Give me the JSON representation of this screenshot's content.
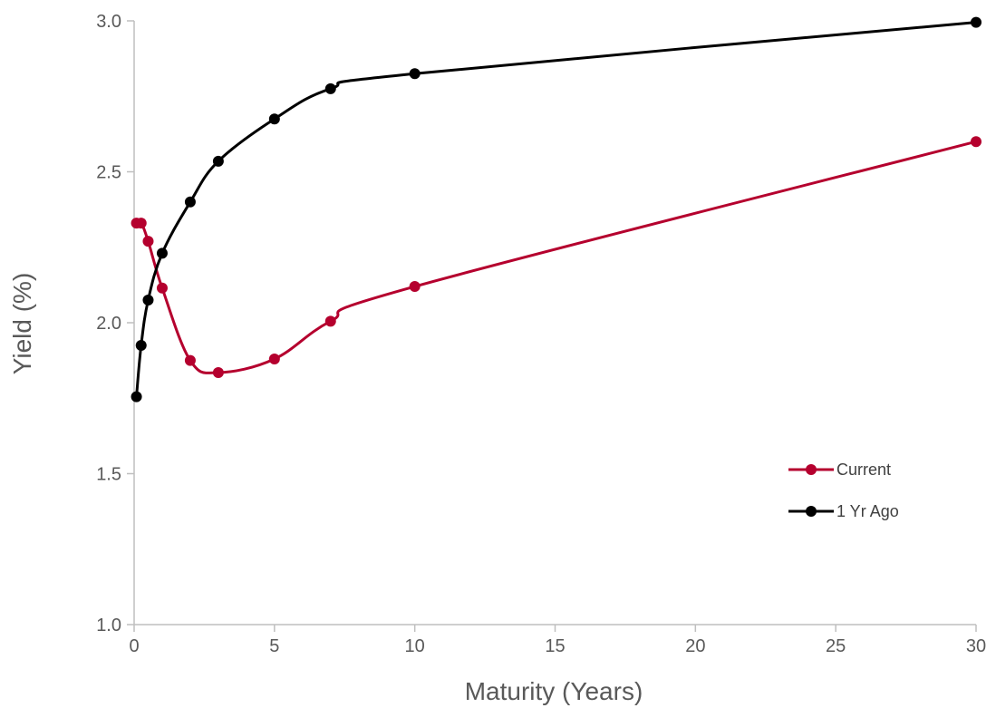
{
  "chart_data": {
    "type": "line",
    "xlabel": "Maturity (Years)",
    "ylabel": "Yield (%)",
    "xlim": [
      0,
      30
    ],
    "ylim": [
      1.0,
      3.0
    ],
    "x_ticks": [
      0,
      5,
      10,
      15,
      20,
      25,
      30
    ],
    "y_ticks": [
      "1.0",
      "1.5",
      "2.0",
      "2.5",
      "3.0"
    ],
    "grid": false,
    "legend_position": "lower-right",
    "series": [
      {
        "name": "Current",
        "color": "#B5002E",
        "x": [
          0.083,
          0.25,
          0.5,
          1,
          2,
          3,
          5,
          7,
          10,
          30
        ],
        "y": [
          2.33,
          2.33,
          2.27,
          2.115,
          1.875,
          1.835,
          1.88,
          2.005,
          2.12,
          2.6
        ]
      },
      {
        "name": "1 Yr Ago",
        "color": "#000000",
        "x": [
          0.083,
          0.25,
          0.5,
          1,
          2,
          3,
          5,
          7,
          10,
          30
        ],
        "y": [
          1.755,
          1.925,
          2.075,
          2.23,
          2.4,
          2.535,
          2.675,
          2.775,
          2.825,
          2.995
        ]
      }
    ]
  }
}
